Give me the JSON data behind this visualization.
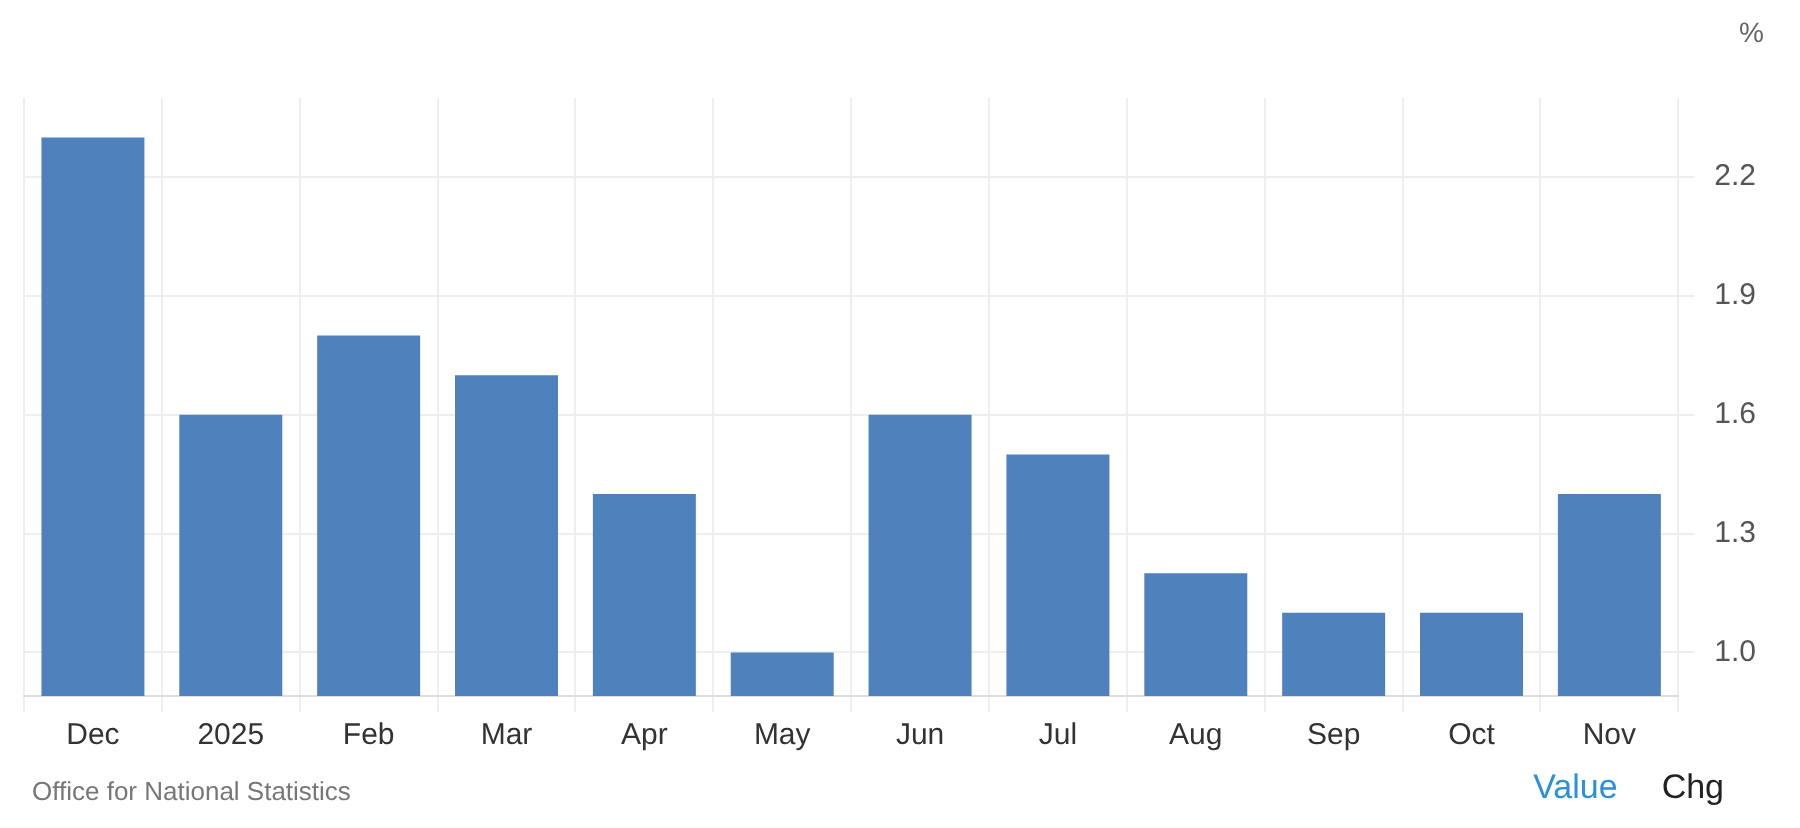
{
  "chart_data": {
    "type": "bar",
    "ylabel": "%",
    "categories": [
      "Dec",
      "2025",
      "Feb",
      "Mar",
      "Apr",
      "May",
      "Jun",
      "Jul",
      "Aug",
      "Sep",
      "Oct",
      "Nov"
    ],
    "values": [
      2.3,
      1.6,
      1.8,
      1.7,
      1.4,
      1.0,
      1.6,
      1.5,
      1.2,
      1.1,
      1.1,
      1.4
    ],
    "color": "#4f81bd",
    "ylim": [
      0.89,
      2.4
    ],
    "yticks": [
      {
        "value": 1.0,
        "label": "1.0"
      },
      1.3,
      1.6,
      1.9,
      2.2
    ],
    "grid": true,
    "annotations": [
      "Office for National Statistics",
      "Value",
      "Chg"
    ]
  }
}
